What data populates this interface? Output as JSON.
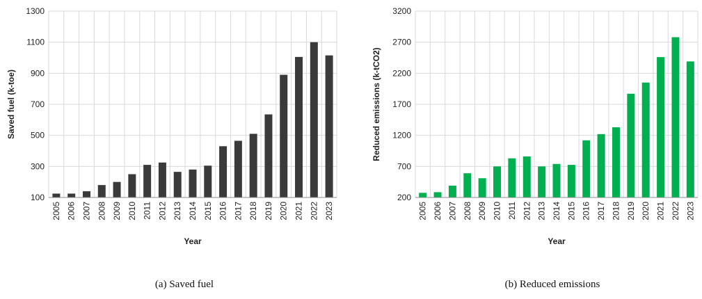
{
  "colors": {
    "saved_fuel": "#3a3a3a",
    "reduced_emissions": "#00b050"
  },
  "chart_data": [
    {
      "type": "bar",
      "caption": "(a) Saved fuel",
      "xlabel": "Year",
      "ylabel": "Saved fuel (k-toe)",
      "ylim": [
        100,
        1300
      ],
      "yticks": [
        100,
        300,
        500,
        700,
        900,
        1100,
        1300
      ],
      "grid": true,
      "categories": [
        "2005",
        "2006",
        "2007",
        "2008",
        "2009",
        "2010",
        "2011",
        "2012",
        "2013",
        "2014",
        "2015",
        "2016",
        "2017",
        "2018",
        "2019",
        "2020",
        "2021",
        "2022",
        "2023"
      ],
      "values": [
        125,
        125,
        140,
        180,
        200,
        250,
        310,
        325,
        265,
        280,
        305,
        430,
        465,
        510,
        635,
        890,
        1005,
        1100,
        1015
      ],
      "color": "#3a3a3a"
    },
    {
      "type": "bar",
      "caption": "(b) Reduced emissions",
      "xlabel": "Year",
      "ylabel": "Reduced emissions (k-tCO2)",
      "ylim": [
        200,
        3200
      ],
      "yticks": [
        200,
        700,
        1200,
        1700,
        2200,
        2700,
        3200
      ],
      "grid": true,
      "categories": [
        "2005",
        "2006",
        "2007",
        "2008",
        "2009",
        "2010",
        "2011",
        "2012",
        "2013",
        "2014",
        "2015",
        "2016",
        "2017",
        "2018",
        "2019",
        "2020",
        "2021",
        "2022",
        "2023"
      ],
      "values": [
        275,
        285,
        390,
        590,
        510,
        700,
        830,
        860,
        700,
        740,
        725,
        1120,
        1220,
        1330,
        1870,
        2050,
        2460,
        2780,
        2390
      ],
      "color": "#00b050"
    }
  ]
}
